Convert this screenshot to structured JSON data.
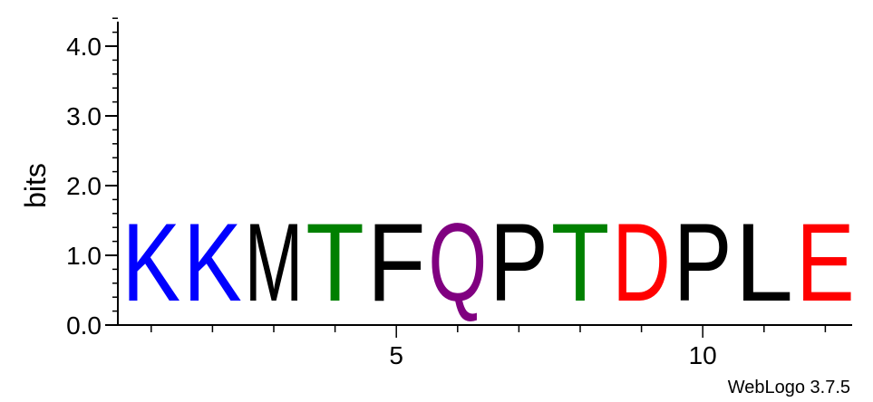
{
  "chart_data": {
    "type": "sequence-logo",
    "ylabel": "bits",
    "ylim": [
      0,
      4.3
    ],
    "yticks": [
      {
        "value": 0,
        "label": "0.0"
      },
      {
        "value": 1,
        "label": "1.0"
      },
      {
        "value": 2,
        "label": "2.0"
      },
      {
        "value": 3,
        "label": "3.0"
      },
      {
        "value": 4,
        "label": "4.0"
      }
    ],
    "x_positions": [
      1,
      2,
      3,
      4,
      5,
      6,
      7,
      8,
      9,
      10,
      11,
      12
    ],
    "xticks": [
      {
        "value": 5,
        "label": "5"
      },
      {
        "value": 10,
        "label": "10"
      }
    ],
    "columns": [
      {
        "position": 1,
        "letter": "K",
        "bits": 1.78,
        "color": "#0000ff"
      },
      {
        "position": 2,
        "letter": "K",
        "bits": 1.78,
        "color": "#0000ff"
      },
      {
        "position": 3,
        "letter": "M",
        "bits": 1.78,
        "color": "#000000"
      },
      {
        "position": 4,
        "letter": "T",
        "bits": 1.78,
        "color": "#008000"
      },
      {
        "position": 5,
        "letter": "F",
        "bits": 1.78,
        "color": "#000000"
      },
      {
        "position": 6,
        "letter": "Q",
        "bits": 1.78,
        "color": "#800080"
      },
      {
        "position": 7,
        "letter": "P",
        "bits": 1.78,
        "color": "#000000"
      },
      {
        "position": 8,
        "letter": "T",
        "bits": 1.78,
        "color": "#008000"
      },
      {
        "position": 9,
        "letter": "D",
        "bits": 1.78,
        "color": "#ff0000"
      },
      {
        "position": 10,
        "letter": "P",
        "bits": 1.78,
        "color": "#000000"
      },
      {
        "position": 11,
        "letter": "L",
        "bits": 1.78,
        "color": "#000000"
      },
      {
        "position": 12,
        "letter": "E",
        "bits": 1.78,
        "color": "#ff0000"
      }
    ],
    "credit": "WebLogo 3.7.5"
  }
}
